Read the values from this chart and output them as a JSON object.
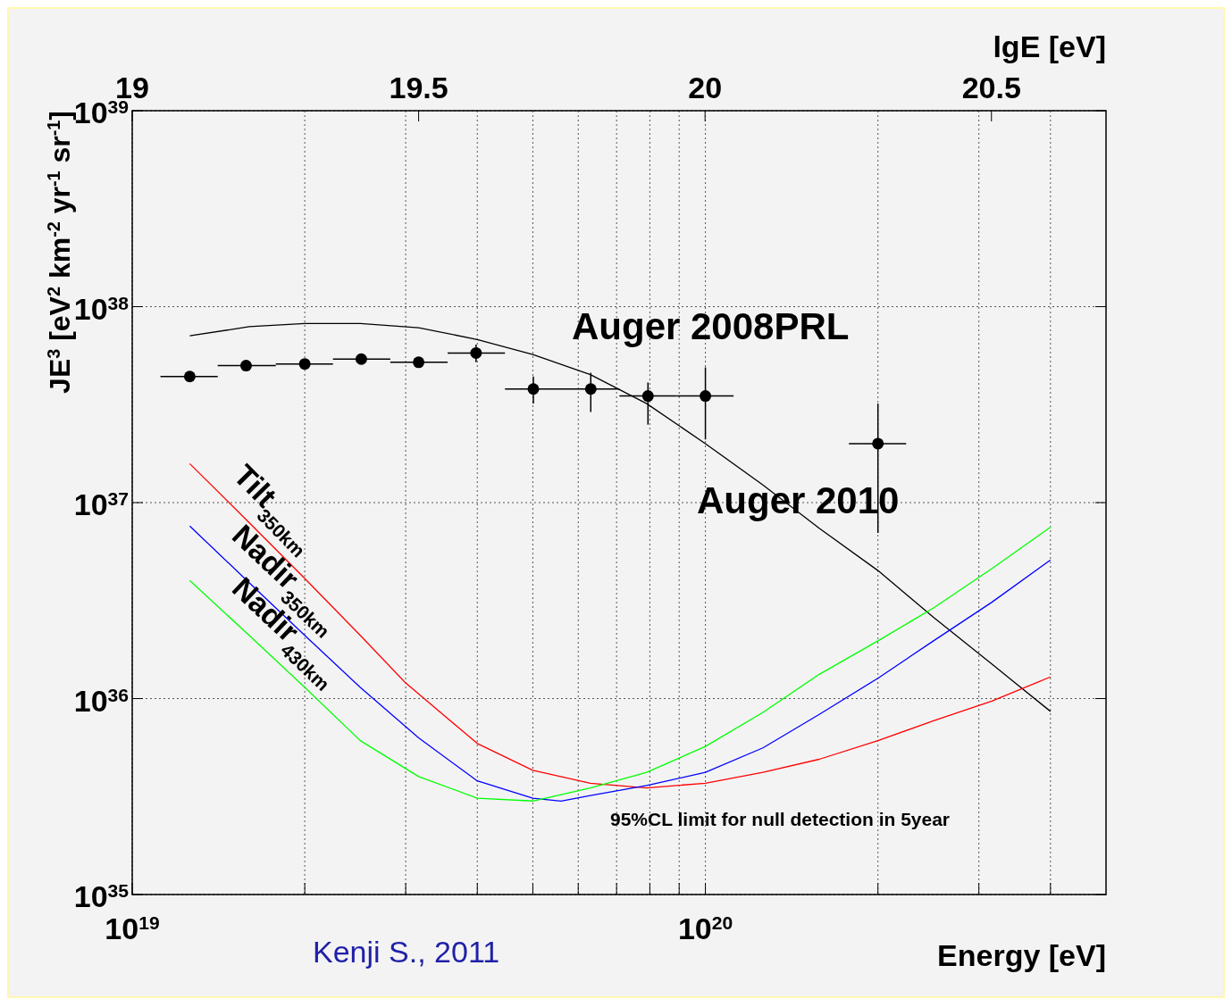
{
  "chart_data": {
    "type": "line",
    "xlabel": "Energy [eV]",
    "ylabel": "JE$^{3}$ [eV$^{2}$ km$^{-2}$ yr$^{-1}$ sr$^{-1}$]",
    "x2label": "lgE [eV]",
    "log": "xy",
    "grid": true,
    "xlim": [
      1e+19,
      5e+20
    ],
    "xticks": [
      {
        "value": 1e+19,
        "label": "10$^{19}$"
      },
      {
        "value": 2e+19,
        "label": null
      },
      {
        "value": 3e+19,
        "label": null
      },
      {
        "value": 4e+19,
        "label": null
      },
      {
        "value": 5e+19,
        "label": null
      },
      {
        "value": 6e+19,
        "label": null
      },
      {
        "value": 7e+19,
        "label": null
      },
      {
        "value": 8e+19,
        "label": null
      },
      {
        "value": 9e+19,
        "label": null
      },
      {
        "value": 1e+20,
        "label": "10$^{20}$"
      },
      {
        "value": 2e+20,
        "label": null
      },
      {
        "value": 3e+20,
        "label": null
      },
      {
        "value": 4e+20,
        "label": null
      }
    ],
    "x2lim": [
      19,
      20.7
    ],
    "x2ticks": [
      19,
      19.5,
      20,
      20.5
    ],
    "ylim": [
      1e+35,
      1e+39
    ],
    "yticks": [
      {
        "value": 1e+35,
        "label": "10$^{35}$"
      },
      {
        "value": 1e+36,
        "label": "10$^{36}$"
      },
      {
        "value": 1e+37,
        "label": "10$^{37}$"
      },
      {
        "value": 1e+38,
        "label": "10$^{38}$"
      },
      {
        "value": 1e+39,
        "label": "10$^{39}$"
      }
    ],
    "series": [
      {
        "color": "#000000",
        "marker": "none",
        "x": [
          1.26e+19,
          1.6e+19,
          2e+19,
          2.5e+19,
          3.16e+19,
          4e+19,
          5e+19,
          6.3e+19,
          7.9e+19,
          1e+20,
          1.26e+20,
          1.58e+20,
          2e+20,
          2.5e+20,
          3.16e+20,
          4e+20
        ],
        "values": [
          7.1e+37,
          7.9e+37,
          8.2e+37,
          8.2e+37,
          7.8e+37,
          6.8e+37,
          5.7e+37,
          4.5e+37,
          3.2e+37,
          2e+37,
          1.23e+37,
          7.4e+36,
          4.5e+36,
          2.6e+36,
          1.5e+36,
          8.6e+35
        ]
      },
      {
        "type": "scatter",
        "color": "#000000",
        "marker": "circle",
        "x": [
          1.26e+19,
          1.58e+19,
          2e+19,
          2.51e+19,
          3.16e+19,
          3.98e+19,
          5.01e+19,
          6.31e+19,
          7.94e+19,
          1e+20,
          2e+20
        ],
        "values": [
          4.4e+37,
          5e+37,
          5.1e+37,
          5.4e+37,
          5.2e+37,
          5.8e+37,
          3.8e+37,
          3.8e+37,
          3.5e+37,
          3.5e+37,
          2e+37
        ],
        "errors": [
          null,
          null,
          null,
          null,
          null,
          [
            5.2e+37,
            6.4e+37
          ],
          [
            3.2e+37,
            4.4e+37
          ],
          [
            2.9e+37,
            4.6e+37
          ],
          [
            2.5e+37,
            4.1e+37
          ],
          [
            2.1e+37,
            4.9e+37
          ],
          [
            7e+36,
            3.2e+37
          ]
        ],
        "xerrors": [
          [
            1.12e+19,
            1.41e+19
          ],
          [
            1.41e+19,
            1.78e+19
          ],
          [
            1.78e+19,
            2.24e+19
          ],
          [
            2.24e+19,
            2.82e+19
          ],
          [
            2.82e+19,
            3.55e+19
          ],
          [
            3.55e+19,
            4.47e+19
          ],
          [
            4.47e+19,
            5.62e+19
          ],
          [
            5.62e+19,
            7.08e+19
          ],
          [
            7.08e+19,
            8.91e+19
          ],
          [
            8.91e+19,
            1.12e+20
          ],
          [
            1.78e+20,
            2.24e+20
          ]
        ]
      },
      {
        "name": "Tilt$_{350km}$",
        "color": "#ff0000",
        "marker": "none",
        "x": [
          1.26e+19,
          1.6e+19,
          2e+19,
          2.5e+19,
          3e+19,
          4e+19,
          5e+19,
          6.3e+19,
          7.9e+19,
          1e+20,
          1.26e+20,
          1.58e+20,
          2e+20,
          2.5e+20,
          3.16e+20,
          4e+20
        ],
        "values": [
          1.58e+37,
          7.9e+36,
          4.1e+36,
          2.1e+36,
          1.2e+36,
          5.9e+35,
          4.3e+35,
          3.7e+35,
          3.5e+35,
          3.7e+35,
          4.2e+35,
          4.9e+35,
          6.1e+35,
          7.7e+35,
          9.7e+35,
          1.29e+36
        ]
      },
      {
        "name": "Nadir$_{350km}$",
        "color": "#0000ff",
        "marker": "none",
        "x": [
          1.26e+19,
          1.6e+19,
          2e+19,
          2.5e+19,
          3.16e+19,
          4e+19,
          5e+19,
          5.6e+19,
          6.3e+19,
          7.9e+19,
          1e+20,
          1.26e+20,
          1.58e+20,
          2e+20,
          2.5e+20,
          3.16e+20,
          4e+20
        ],
        "values": [
          7.6e+36,
          3.9e+36,
          2.1e+36,
          1.14e+36,
          6.3e+35,
          3.8e+35,
          3.1e+35,
          3e+35,
          3.2e+35,
          3.6e+35,
          4.2e+35,
          5.6e+35,
          8.3e+35,
          1.27e+36,
          1.97e+36,
          3.1e+36,
          5.1e+36
        ]
      },
      {
        "name": "Nadir$_{430km}$",
        "color": "#00ff00",
        "marker": "none",
        "x": [
          1.26e+19,
          1.6e+19,
          2e+19,
          2.5e+19,
          3.16e+19,
          4e+19,
          5e+19,
          6.3e+19,
          7.9e+19,
          1e+20,
          1.26e+20,
          1.58e+20,
          2e+20,
          2.5e+20,
          3.16e+20,
          4e+20
        ],
        "values": [
          4e+36,
          2.1e+36,
          1.14e+36,
          6.1e+35,
          4e+35,
          3.1e+35,
          3e+35,
          3.5e+35,
          4.2e+35,
          5.7e+35,
          8.5e+35,
          1.33e+36,
          1.97e+36,
          2.9e+36,
          4.6e+36,
          7.5e+36
        ]
      }
    ],
    "annotations": [
      "Auger 2008PRL",
      "Auger 2010",
      "95%CL limit for null detection in 5year",
      "Kenji S., 2011"
    ]
  }
}
